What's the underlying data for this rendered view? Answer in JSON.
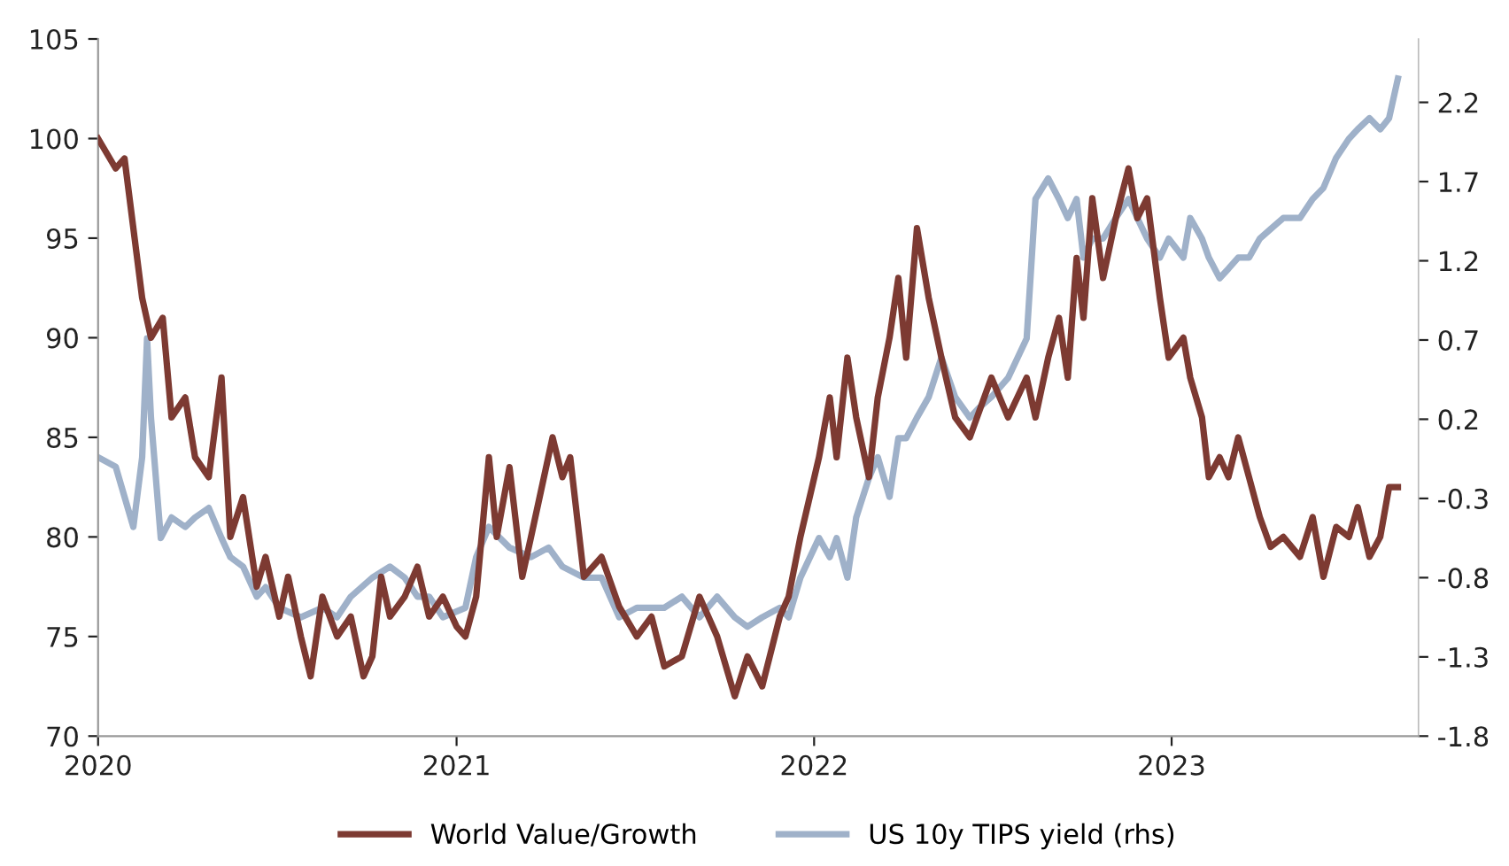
{
  "chart_data": {
    "type": "line",
    "xlim": [
      "2020-01-01",
      "2023-09-10"
    ],
    "xticks": [
      {
        "value": "2020-01-01",
        "label": "2020"
      },
      {
        "value": "2021-01-01",
        "label": "2021"
      },
      {
        "value": "2022-01-01",
        "label": "2022"
      },
      {
        "value": "2023-01-01",
        "label": "2023"
      }
    ],
    "ylim": [
      70,
      105
    ],
    "yticks": [
      70,
      75,
      80,
      85,
      90,
      95,
      100,
      105
    ],
    "y2lim": [
      -1.8,
      2.6
    ],
    "y2ticks": [
      -1.8,
      -1.3,
      -0.8,
      -0.3,
      0.2,
      0.7,
      1.2,
      1.7,
      2.2
    ],
    "grid": false,
    "legend": "bottom",
    "marker": "none",
    "line_style": "solid",
    "series": [
      {
        "name": "World Value/Growth",
        "color": "#7d3a32",
        "axis": "y",
        "x": [
          "2020-01-01",
          "2020-01-19",
          "2020-01-28",
          "2020-02-15",
          "2020-02-24",
          "2020-03-07",
          "2020-03-16",
          "2020-03-30",
          "2020-04-09",
          "2020-04-23",
          "2020-05-06",
          "2020-05-15",
          "2020-05-28",
          "2020-06-11",
          "2020-06-20",
          "2020-07-04",
          "2020-07-13",
          "2020-07-26",
          "2020-08-05",
          "2020-08-17",
          "2020-09-01",
          "2020-09-15",
          "2020-09-28",
          "2020-10-07",
          "2020-10-16",
          "2020-10-25",
          "2020-11-09",
          "2020-11-22",
          "2020-12-04",
          "2020-12-18",
          "2021-01-01",
          "2021-01-10",
          "2021-01-21",
          "2021-02-03",
          "2021-02-11",
          "2021-02-24",
          "2021-03-09",
          "2021-03-18",
          "2021-04-09",
          "2021-04-19",
          "2021-04-27",
          "2021-05-11",
          "2021-05-29",
          "2021-06-16",
          "2021-07-04",
          "2021-07-19",
          "2021-08-01",
          "2021-08-19",
          "2021-09-06",
          "2021-09-24",
          "2021-10-12",
          "2021-10-25",
          "2021-11-09",
          "2021-11-27",
          "2021-12-06",
          "2021-12-18",
          "2022-01-06",
          "2022-01-17",
          "2022-01-24",
          "2022-02-04",
          "2022-02-13",
          "2022-02-26",
          "2022-03-07",
          "2022-03-19",
          "2022-03-28",
          "2022-04-05",
          "2022-04-16",
          "2022-04-28",
          "2022-05-11",
          "2022-05-25",
          "2022-06-09",
          "2022-07-01",
          "2022-07-18",
          "2022-08-06",
          "2022-08-15",
          "2022-08-28",
          "2022-09-08",
          "2022-09-17",
          "2022-09-26",
          "2022-10-03",
          "2022-10-12",
          "2022-10-23",
          "2022-11-05",
          "2022-11-18",
          "2022-11-27",
          "2022-12-07",
          "2022-12-20",
          "2022-12-29",
          "2023-01-13",
          "2023-01-20",
          "2023-02-01",
          "2023-02-08",
          "2023-02-19",
          "2023-02-28",
          "2023-03-10",
          "2023-03-21",
          "2023-04-01",
          "2023-04-12",
          "2023-04-25",
          "2023-05-12",
          "2023-05-25",
          "2023-06-05",
          "2023-06-18",
          "2023-07-01",
          "2023-07-10",
          "2023-07-22",
          "2023-08-02",
          "2023-08-11",
          "2023-08-20"
        ],
        "values": [
          100,
          98.5,
          99,
          92,
          90,
          91,
          86,
          87,
          84,
          83,
          88,
          80,
          82,
          77.5,
          79,
          76,
          78,
          75,
          73,
          77,
          75,
          76,
          73,
          74,
          78,
          76,
          77,
          78.5,
          76,
          77,
          75.5,
          75,
          77,
          84,
          80,
          83.5,
          78,
          80,
          85,
          83,
          84,
          78,
          79,
          76.5,
          75,
          76,
          73.5,
          74,
          77,
          75,
          72,
          74,
          72.5,
          76,
          77,
          80,
          84,
          87,
          84,
          89,
          86,
          83,
          87,
          90,
          93,
          89,
          95.5,
          92,
          89,
          86,
          85,
          88,
          86,
          88,
          86,
          89,
          91,
          88,
          94,
          91,
          97,
          93,
          96,
          98.5,
          96,
          97,
          92,
          89,
          90,
          88,
          86,
          83,
          84,
          83,
          85,
          83,
          81,
          79.5,
          80,
          79,
          81,
          78,
          80.5,
          80,
          81.5,
          79,
          80,
          82.5,
          82.5
        ]
      },
      {
        "name": "US 10y TIPS yield (rhs)",
        "color": "#9fb1c9",
        "axis": "y2",
        "x": [
          "2020-01-01",
          "2020-01-19",
          "2020-01-28",
          "2020-02-06",
          "2020-02-15",
          "2020-02-20",
          "2020-02-24",
          "2020-03-05",
          "2020-03-16",
          "2020-03-30",
          "2020-04-09",
          "2020-04-23",
          "2020-05-06",
          "2020-05-15",
          "2020-05-28",
          "2020-06-11",
          "2020-06-20",
          "2020-07-04",
          "2020-07-26",
          "2020-08-17",
          "2020-09-01",
          "2020-09-15",
          "2020-10-07",
          "2020-10-25",
          "2020-11-09",
          "2020-11-22",
          "2020-12-04",
          "2020-12-18",
          "2021-01-10",
          "2021-01-21",
          "2021-02-03",
          "2021-02-24",
          "2021-03-18",
          "2021-04-05",
          "2021-04-19",
          "2021-05-11",
          "2021-05-29",
          "2021-06-16",
          "2021-07-04",
          "2021-08-01",
          "2021-08-19",
          "2021-09-06",
          "2021-09-24",
          "2021-10-12",
          "2021-10-25",
          "2021-11-09",
          "2021-11-27",
          "2021-12-06",
          "2021-12-18",
          "2022-01-06",
          "2022-01-17",
          "2022-01-24",
          "2022-02-04",
          "2022-02-13",
          "2022-02-26",
          "2022-03-07",
          "2022-03-19",
          "2022-03-28",
          "2022-04-05",
          "2022-04-16",
          "2022-04-28",
          "2022-05-11",
          "2022-05-25",
          "2022-06-09",
          "2022-06-18",
          "2022-07-01",
          "2022-07-18",
          "2022-08-06",
          "2022-08-15",
          "2022-08-28",
          "2022-09-08",
          "2022-09-17",
          "2022-09-26",
          "2022-10-03",
          "2022-10-12",
          "2022-10-23",
          "2022-11-05",
          "2022-11-18",
          "2022-11-27",
          "2022-12-07",
          "2022-12-20",
          "2022-12-29",
          "2023-01-13",
          "2023-01-20",
          "2023-02-01",
          "2023-02-08",
          "2023-02-19",
          "2023-02-28",
          "2023-03-10",
          "2023-03-21",
          "2023-04-01",
          "2023-04-12",
          "2023-04-25",
          "2023-05-12",
          "2023-05-25",
          "2023-06-05",
          "2023-06-18",
          "2023-07-01",
          "2023-07-10",
          "2023-07-22",
          "2023-08-02",
          "2023-08-11",
          "2023-08-20"
        ],
        "values": [
          -0.04,
          -0.1,
          -0.29,
          -0.48,
          -0.04,
          0.71,
          0.21,
          -0.55,
          -0.42,
          -0.48,
          -0.42,
          -0.36,
          -0.55,
          -0.67,
          -0.73,
          -0.92,
          -0.86,
          -0.99,
          -1.05,
          -0.99,
          -1.05,
          -0.92,
          -0.8,
          -0.73,
          -0.8,
          -0.92,
          -0.92,
          -1.05,
          -0.99,
          -0.67,
          -0.48,
          -0.61,
          -0.67,
          -0.61,
          -0.73,
          -0.8,
          -0.8,
          -1.05,
          -0.99,
          -0.99,
          -0.92,
          -1.05,
          -0.92,
          -1.05,
          -1.11,
          -1.05,
          -0.99,
          -1.05,
          -0.8,
          -0.55,
          -0.67,
          -0.55,
          -0.8,
          -0.42,
          -0.17,
          -0.04,
          -0.29,
          0.08,
          0.08,
          0.21,
          0.34,
          0.59,
          0.34,
          0.21,
          0.27,
          0.34,
          0.46,
          0.71,
          1.59,
          1.72,
          1.59,
          1.47,
          1.59,
          1.22,
          1.34,
          1.34,
          1.47,
          1.59,
          1.47,
          1.34,
          1.22,
          1.34,
          1.22,
          1.47,
          1.34,
          1.22,
          1.09,
          1.15,
          1.22,
          1.22,
          1.34,
          1.4,
          1.47,
          1.47,
          1.59,
          1.66,
          1.85,
          1.97,
          2.03,
          2.1,
          2.03,
          2.1,
          2.35
        ]
      }
    ]
  }
}
